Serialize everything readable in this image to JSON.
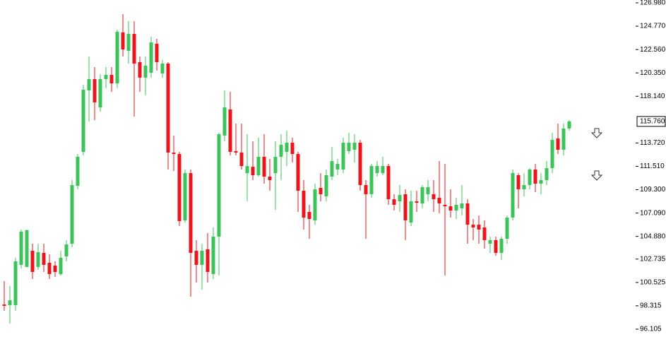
{
  "chart_data": {
    "type": "candlestick",
    "up_color": "#3cc35a",
    "down_color": "#e8151b",
    "ylim": [
      96.105,
      126.98
    ],
    "yticks": [
      {
        "value": 126.98,
        "label": "126.980"
      },
      {
        "value": 124.77,
        "label": "124.770"
      },
      {
        "value": 122.56,
        "label": "122.560"
      },
      {
        "value": 120.35,
        "label": "120.350"
      },
      {
        "value": 118.14,
        "label": "118.140"
      },
      {
        "value": 113.72,
        "label": "113.720"
      },
      {
        "value": 111.51,
        "label": "111.510"
      },
      {
        "value": 109.3,
        "label": "109.300"
      },
      {
        "value": 107.09,
        "label": "107.090"
      },
      {
        "value": 104.88,
        "label": "104.880"
      },
      102.735,
      100.525,
      98.315,
      96.105
    ],
    "last_price": {
      "value": 115.76,
      "label": "115.760"
    },
    "open": [
      98.44,
      98.38,
      98.38,
      102.19,
      101.99,
      103.52,
      101.99,
      103.32,
      102.39,
      102.12,
      101.32,
      102.99,
      104.19,
      109.67,
      112.88,
      118.69,
      119.76,
      117.09,
      119.76,
      120.16,
      119.36,
      124.18,
      122.44,
      124.04,
      121.37,
      119.9,
      120.37,
      123.11,
      120.3,
      121.23,
      112.81,
      112.68,
      106.4,
      110.87,
      103.52,
      102.19,
      103.66,
      101.32,
      104.86,
      114.42,
      116.89,
      112.95,
      112.81,
      110.87,
      111.47,
      110.67,
      112.41,
      110.54,
      110.87,
      112.41,
      112.88,
      113.75,
      112.68,
      109.2,
      107.2,
      106.4,
      109.47,
      108.67,
      110.54,
      111.21,
      111.21,
      112.95,
      113.08,
      113.75,
      109.74,
      108.87,
      110.87,
      110.87,
      111.54,
      108.4,
      108.2,
      108.87,
      106.19,
      108.2,
      108.0,
      108.87,
      108.87,
      108.54,
      107.87,
      107.73,
      107.33,
      107.53,
      108.0,
      105.99,
      105.99,
      105.73,
      104.19,
      104.53,
      103.32,
      104.66,
      106.66,
      110.67,
      109.34,
      109.74,
      111.21,
      109.87,
      110.21,
      111.34,
      114.15,
      113.08,
      115.09
    ],
    "high": [
      100.65,
      100.18,
      102.85,
      105.53,
      105.53,
      104.19,
      104.19,
      104.19,
      103.19,
      102.52,
      103.52,
      104.53,
      110.21,
      112.68,
      119.23,
      121.9,
      120.9,
      120.23,
      120.9,
      120.9,
      124.44,
      125.91,
      125.24,
      125.24,
      121.9,
      121.9,
      123.77,
      123.57,
      121.57,
      121.37,
      114.42,
      112.88,
      111.21,
      111.21,
      104.53,
      104.19,
      105.19,
      105.73,
      114.68,
      118.69,
      118.56,
      115.55,
      115.55,
      114.55,
      113.88,
      114.22,
      114.55,
      112.21,
      113.88,
      114.55,
      114.88,
      114.22,
      112.88,
      110.21,
      107.87,
      109.87,
      110.87,
      111.21,
      113.35,
      112.21,
      114.22,
      114.68,
      114.55,
      114.02,
      110.21,
      111.74,
      112.01,
      112.41,
      111.74,
      108.87,
      109.74,
      109.34,
      109.2,
      109.2,
      109.74,
      110.21,
      110.21,
      112.01,
      111.74,
      109.34,
      108.54,
      109.74,
      108.4,
      106.53,
      106.86,
      106.4,
      104.86,
      104.86,
      104.86,
      106.86,
      111.21,
      110.87,
      110.87,
      111.34,
      111.74,
      110.87,
      112.01,
      114.68,
      115.55,
      115.55,
      115.89
    ],
    "low": [
      97.84,
      96.64,
      97.84,
      101.85,
      101.99,
      100.85,
      101.72,
      101.52,
      100.85,
      101.05,
      101.18,
      102.52,
      103.86,
      109.34,
      112.55,
      115.75,
      115.89,
      116.69,
      118.9,
      118.56,
      118.9,
      121.9,
      121.23,
      116.22,
      118.56,
      118.23,
      119.9,
      120.57,
      119.9,
      111.21,
      111.07,
      105.86,
      106.19,
      99.18,
      100.51,
      99.85,
      100.51,
      100.85,
      101.18,
      113.88,
      112.55,
      112.55,
      111.21,
      108.2,
      110.21,
      110.54,
      109.87,
      109.2,
      107.4,
      110.21,
      111.54,
      111.88,
      107.2,
      105.53,
      104.66,
      105.99,
      108.2,
      108.2,
      110.21,
      110.67,
      110.87,
      112.68,
      111.88,
      109.2,
      104.66,
      108.54,
      110.54,
      110.67,
      107.87,
      107.33,
      107.2,
      104.53,
      105.86,
      107.2,
      107.53,
      108.2,
      107.2,
      107.07,
      101.18,
      106.66,
      106.53,
      106.86,
      104.19,
      104.53,
      104.19,
      103.72,
      103.32,
      103.05,
      102.65,
      104.19,
      106.4,
      107.53,
      108.67,
      109.34,
      109.07,
      108.87,
      109.74,
      110.87,
      112.68,
      112.55,
      114.88
    ],
    "close": [
      98.31,
      98.84,
      102.52,
      105.33,
      105.46,
      101.52,
      103.39,
      102.19,
      101.32,
      101.52,
      102.85,
      104.12,
      109.74,
      112.41,
      118.76,
      119.76,
      117.56,
      119.76,
      120.16,
      119.36,
      124.24,
      122.57,
      124.04,
      121.23,
      119.9,
      121.03,
      123.24,
      121.37,
      121.23,
      112.81,
      112.68,
      106.33,
      110.87,
      103.32,
      102.19,
      103.52,
      101.52,
      104.86,
      114.55,
      117.09,
      112.88,
      112.81,
      111.54,
      111.54,
      110.67,
      112.41,
      110.54,
      110.21,
      112.41,
      113.55,
      113.75,
      112.68,
      109.2,
      106.66,
      106.53,
      109.34,
      108.87,
      110.67,
      112.01,
      111.74,
      113.75,
      113.75,
      113.75,
      109.74,
      108.87,
      111.54,
      111.54,
      111.54,
      108.4,
      107.87,
      108.8,
      106.4,
      108.2,
      108.07,
      109.54,
      109.54,
      108.4,
      108.0,
      107.73,
      107.33,
      107.87,
      108.0,
      105.99,
      105.73,
      105.53,
      104.53,
      104.53,
      103.32,
      104.66,
      106.66,
      110.87,
      109.34,
      109.74,
      111.21,
      109.87,
      110.21,
      111.34,
      114.02,
      113.08,
      115.09,
      115.76
    ]
  }
}
